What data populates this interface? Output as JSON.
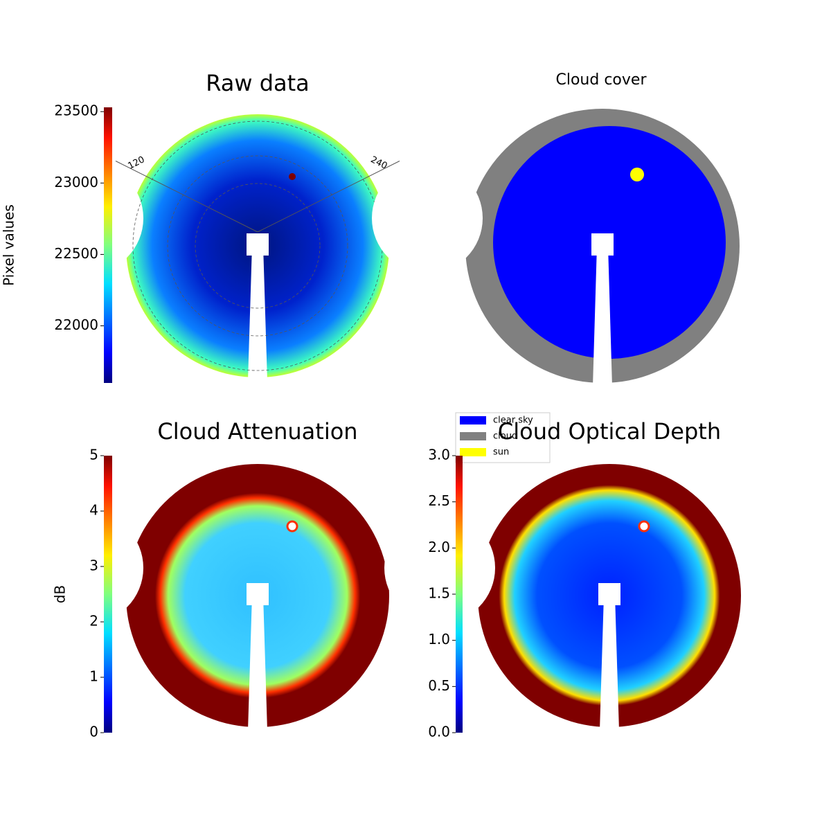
{
  "chart_data": [
    {
      "type": "heatmap",
      "title": "Raw data",
      "colormap": "jet",
      "colorbar": {
        "label": "Pixel values",
        "lim": [
          21600,
          23530
        ],
        "ticks": [
          22000,
          22500,
          23000,
          23500
        ]
      },
      "azimuth_ticks": [
        120,
        240
      ]
    },
    {
      "type": "categorical",
      "title": "Cloud cover",
      "legend": [
        {
          "name": "clear sky",
          "color": "#0000ff"
        },
        {
          "name": "cloud",
          "color": "#808080"
        },
        {
          "name": "sun",
          "color": "#ffff00"
        }
      ]
    },
    {
      "type": "heatmap",
      "title": "Cloud Attenuation",
      "colormap": "jet",
      "colorbar": {
        "label": "dB",
        "lim": [
          0,
          5
        ],
        "ticks": [
          0,
          1,
          2,
          3,
          4,
          5
        ]
      }
    },
    {
      "type": "heatmap",
      "title": "Cloud Optical Depth",
      "colormap": "jet",
      "colorbar": {
        "lim": [
          0,
          3
        ],
        "ticks": [
          {
            "value": 0,
            "label": "0.0"
          },
          0.5,
          {
            "value": 1,
            "label": "1.0"
          },
          1.5,
          {
            "value": 2,
            "label": "2.0"
          },
          2.5,
          {
            "value": 3,
            "label": "3.0"
          }
        ]
      }
    }
  ]
}
